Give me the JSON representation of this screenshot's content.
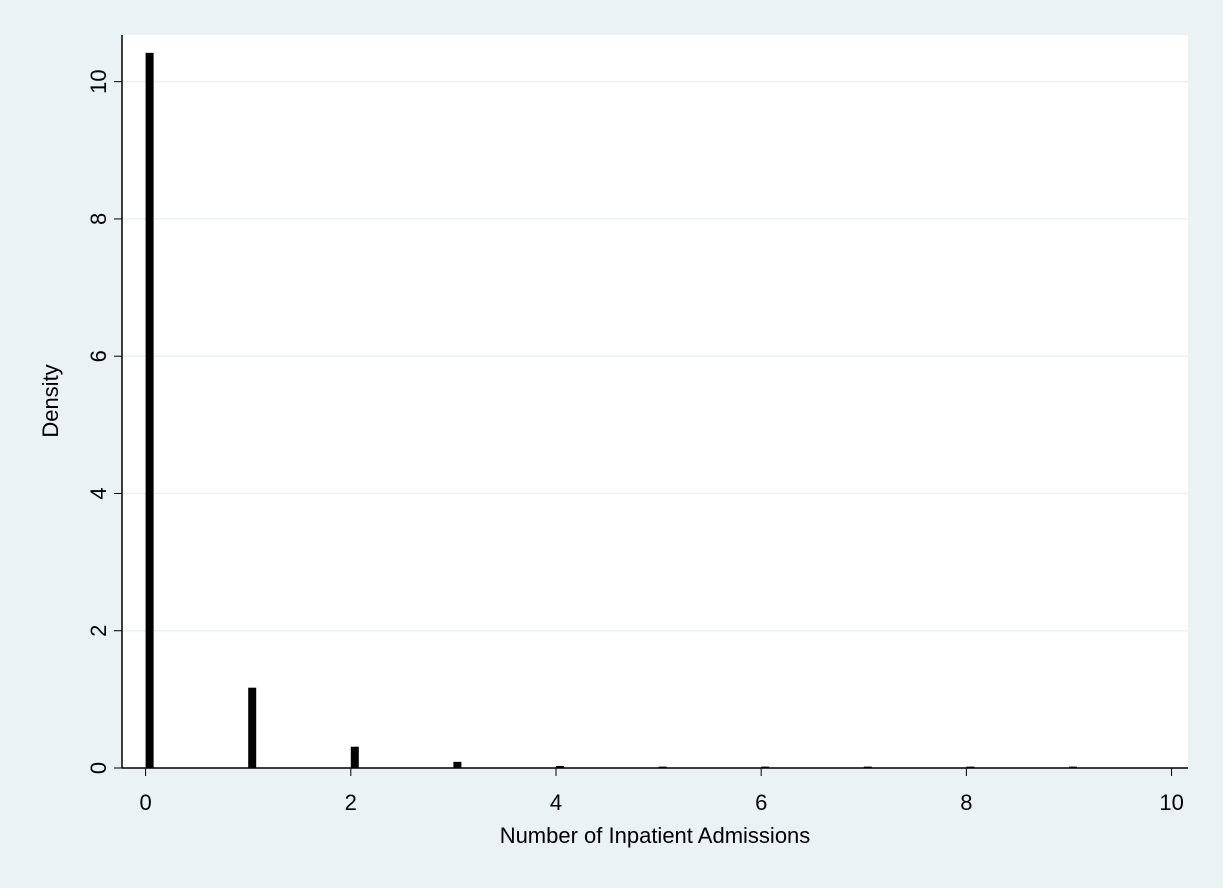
{
  "chart_data": {
    "type": "bar",
    "x_label": "Number of Inpatient Admissions",
    "y_label": "Density",
    "x": [
      0,
      1,
      2,
      3,
      4,
      5,
      6,
      7,
      8,
      9
    ],
    "values": [
      10.42,
      1.17,
      0.31,
      0.09,
      0.03,
      0.02,
      0.02,
      0.02,
      0.02,
      0.02
    ],
    "color": "#000000",
    "xlim": [
      -0.23,
      10.16
    ],
    "ylim": [
      0,
      10.68
    ],
    "xticks": [
      0,
      2,
      4,
      6,
      8,
      10
    ],
    "yticks": [
      0,
      2,
      4,
      6,
      8,
      10
    ],
    "grid": true
  }
}
